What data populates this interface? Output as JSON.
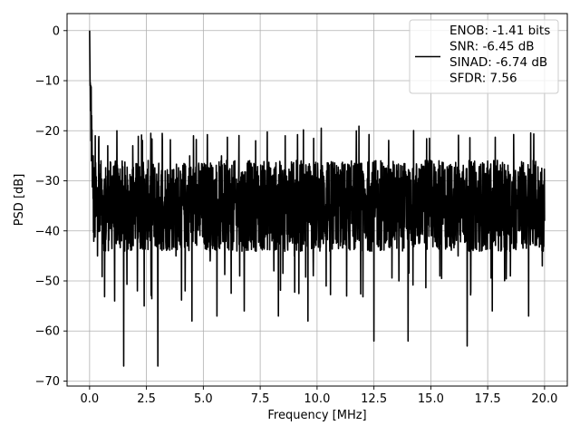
{
  "chart_data": {
    "type": "line",
    "xlabel": "Frequency [MHz]",
    "ylabel": "PSD [dB]",
    "xlim": [
      -0.99,
      21.0
    ],
    "ylim": [
      -71.0,
      3.4
    ],
    "xticks": [
      0.0,
      2.5,
      5.0,
      7.5,
      10.0,
      12.5,
      15.0,
      17.5,
      20.0
    ],
    "xtick_labels": [
      "0.0",
      "2.5",
      "5.0",
      "7.5",
      "10.0",
      "12.5",
      "15.0",
      "17.5",
      "20.0"
    ],
    "yticks": [
      0,
      -10,
      -20,
      -30,
      -40,
      -50,
      -60,
      -70
    ],
    "ytick_labels": [
      "0",
      "−10",
      "−20",
      "−30",
      "−40",
      "−50",
      "−60",
      "−70"
    ],
    "grid": true,
    "legend_position": "top-right",
    "series": [
      {
        "name": "ENOB: -1.41 bits\nSNR: -6.45 dB\nSINAD: -6.74 dB\nSFDR: 7.56",
        "legend_lines": [
          "ENOB: -1.41 bits",
          "SNR: -6.45 dB",
          "SINAD: -6.74 dB",
          "SFDR: 7.56"
        ],
        "color": "#000000",
        "noise_floor_db": -34,
        "noise_band_db": [
          -48,
          -22
        ],
        "x": [
          0.0,
          0.02,
          0.04,
          0.06,
          0.08,
          0.1,
          0.13,
          0.16,
          0.2,
          0.25,
          0.3,
          0.35,
          0.4,
          0.45,
          0.5,
          0.6,
          0.7,
          0.8,
          0.9,
          1.0,
          1.1,
          1.2,
          1.3,
          1.4,
          1.5,
          1.7,
          1.9,
          2.1,
          2.3,
          2.4,
          2.5,
          2.7,
          2.9,
          3.0,
          3.2,
          3.5,
          3.8,
          4.0,
          4.2,
          4.4,
          4.5,
          4.7,
          5.0,
          5.3,
          5.6,
          5.8,
          6.0,
          6.3,
          6.6,
          6.8,
          7.0,
          7.3,
          7.5,
          7.8,
          7.9,
          8.1,
          8.3,
          8.6,
          8.9,
          9.0,
          9.3,
          9.6,
          10.0,
          10.3,
          10.6,
          11.0,
          11.3,
          11.6,
          12.0,
          12.2,
          12.5,
          12.8,
          13.2,
          13.6,
          13.9,
          14.0,
          14.3,
          14.7,
          15.0,
          15.4,
          15.8,
          16.2,
          16.6,
          16.9,
          17.3,
          17.7,
          18.1,
          18.5,
          18.9,
          19.3,
          19.6,
          19.9,
          20.0
        ],
        "y": [
          0.0,
          -11,
          -16,
          -22,
          -26,
          -23,
          -30,
          -25,
          -34,
          -21,
          -37,
          -45,
          -22,
          -40,
          -26,
          -33,
          -44,
          -23,
          -38,
          -29,
          -54,
          -20,
          -41,
          -30,
          -67,
          -35,
          -23,
          -52,
          -28,
          -55,
          -33,
          -47,
          -40,
          -67,
          -22,
          -36,
          -45,
          -30,
          -52,
          -25,
          -58,
          -38,
          -31,
          -46,
          -57,
          -25,
          -40,
          -33,
          -49,
          -56,
          -30,
          -22,
          -43,
          -36,
          -28,
          -48,
          -57,
          -21,
          -35,
          -45,
          -26,
          -58,
          -34,
          -30,
          -41,
          -35,
          -53,
          -27,
          -44,
          -37,
          -62,
          -26,
          -38,
          -50,
          -33,
          -62,
          -40,
          -29,
          -36,
          -49,
          -27,
          -45,
          -63,
          -31,
          -43,
          -56,
          -34,
          -49,
          -40,
          -57,
          -33,
          -47,
          -38
        ]
      }
    ]
  }
}
